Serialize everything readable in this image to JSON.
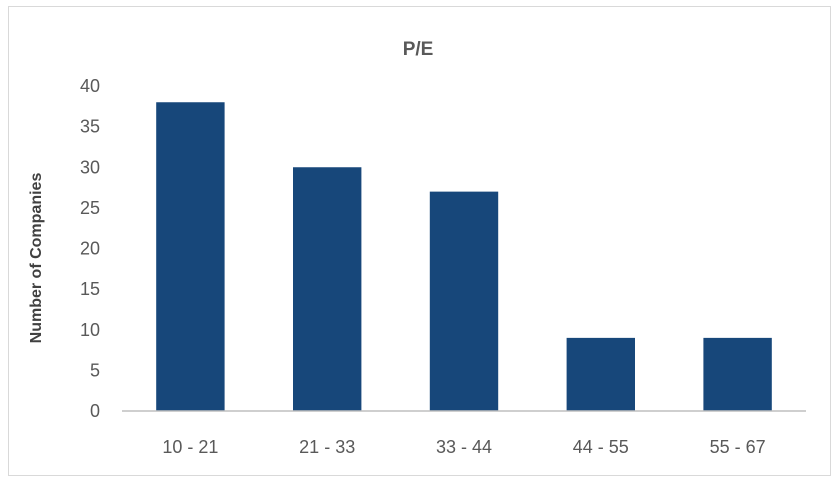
{
  "chart_data": {
    "type": "bar",
    "title": "P/E",
    "xlabel": "",
    "ylabel": "Number of Companies",
    "categories": [
      "10 - 21",
      "21 - 33",
      "33 - 44",
      "44 - 55",
      "55 - 67"
    ],
    "values": [
      38,
      30,
      27,
      9,
      9
    ],
    "ylim": [
      0,
      40
    ],
    "yticks": [
      "0",
      "5",
      "10",
      "15",
      "20",
      "25",
      "30",
      "35",
      "40"
    ],
    "bar_color": "#17477A",
    "grid": false,
    "legend": "none"
  }
}
